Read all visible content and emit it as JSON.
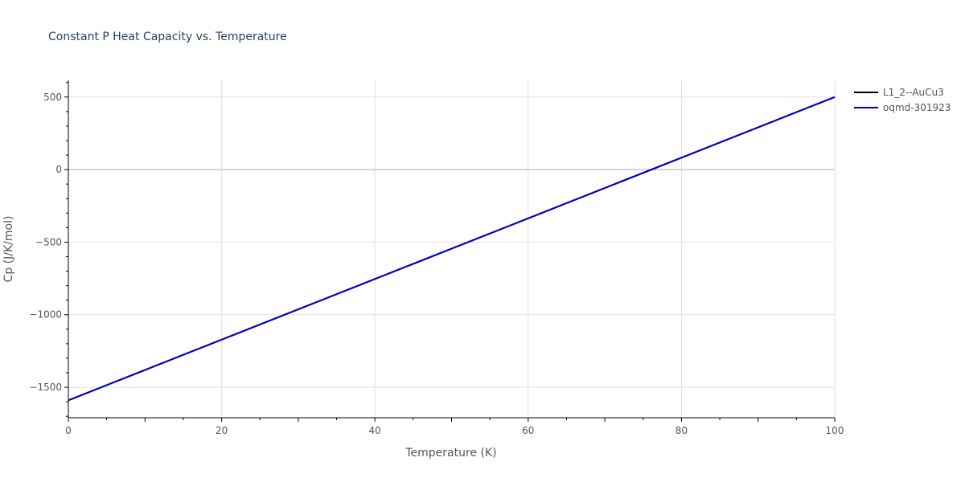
{
  "chart_data": {
    "type": "line",
    "title": "Constant P Heat Capacity vs. Temperature",
    "xlabel": "Temperature (K)",
    "ylabel": "Cp (J/K/mol)",
    "xlim": [
      0,
      100
    ],
    "ylim": [
      -1710,
      615
    ],
    "x_ticks": [
      0,
      20,
      40,
      60,
      80,
      100
    ],
    "x_tick_labels": [
      "0",
      "20",
      "40",
      "60",
      "80",
      "100"
    ],
    "y_ticks": [
      -1500,
      -1000,
      -500,
      0,
      500
    ],
    "y_tick_labels": [
      "−1500",
      "−1000",
      "−500",
      "0",
      "500"
    ],
    "grid": true,
    "legend_position": "top-right",
    "series": [
      {
        "name": "L1_2--AuCu3",
        "color": "#000000",
        "x": [
          0,
          10,
          20,
          30,
          40,
          50,
          60,
          70,
          80,
          90,
          100
        ],
        "y": [
          -1590,
          -1381,
          -1172,
          -963,
          -754,
          -545,
          -336,
          -127,
          82,
          291,
          500
        ]
      },
      {
        "name": "oqmd-301923",
        "color": "#0000cc",
        "x": [
          0,
          10,
          20,
          30,
          40,
          50,
          60,
          70,
          80,
          90,
          100
        ],
        "y": [
          -1590,
          -1381,
          -1172,
          -963,
          -754,
          -545,
          -336,
          -127,
          82,
          291,
          500
        ]
      }
    ]
  }
}
